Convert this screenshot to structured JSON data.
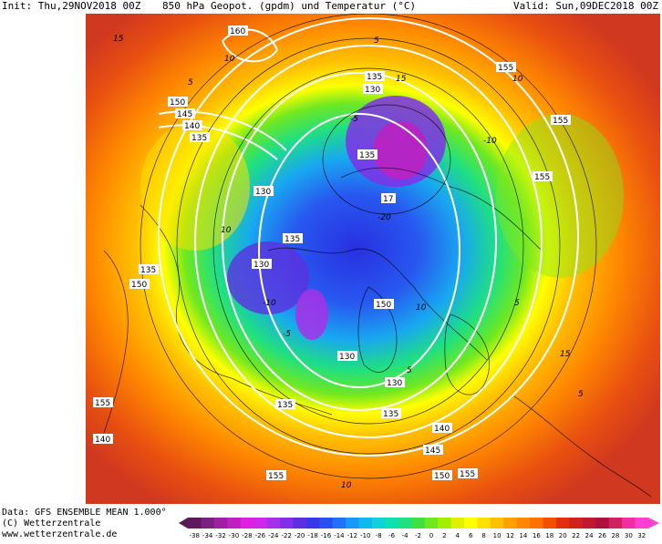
{
  "header": {
    "init": "Init: Thu,29NOV2018 00Z",
    "title": "850 hPa Geopot. (gpdm) und Temperatur (°C)",
    "valid": "Valid: Sun,09DEC2018 00Z"
  },
  "footer": {
    "data": "Data: GFS ENSEMBLE MEAN 1.000°",
    "copyright": "(C) Wetterzentrale",
    "url": "www.wetterzentrale.de"
  },
  "geopotential_labels": [
    "160",
    "155",
    "155",
    "155",
    "150",
    "145",
    "140",
    "135",
    "135",
    "130",
    "135",
    "130",
    "17",
    "135",
    "130",
    "135",
    "150",
    "130",
    "135",
    "130",
    "135",
    "140",
    "145",
    "150",
    "155",
    "155",
    "140",
    "155",
    "150"
  ],
  "temperature_labels": [
    "15",
    "10",
    "5",
    "15",
    "10",
    "5",
    "-5",
    "-10",
    "-20",
    "-5",
    "5",
    "10",
    "-10",
    "10",
    "5",
    "15",
    "10",
    "5"
  ],
  "colorbar": {
    "ticks": [
      "-38",
      "-34",
      "-32",
      "-30",
      "-28",
      "-26",
      "-24",
      "-22",
      "-20",
      "-18",
      "-16",
      "-14",
      "-12",
      "-10",
      "-8",
      "-6",
      "-4",
      "-2",
      "0",
      "2",
      "4",
      "6",
      "8",
      "10",
      "12",
      "14",
      "16",
      "18",
      "20",
      "22",
      "24",
      "26",
      "28",
      "30",
      "32"
    ],
    "colors": [
      "#5a1a5a",
      "#7a2080",
      "#a020a0",
      "#c020c0",
      "#e020e0",
      "#d028e8",
      "#a830e8",
      "#8030e8",
      "#5c30e0",
      "#3838e8",
      "#2850f0",
      "#2070f8",
      "#1898f8",
      "#10b8f0",
      "#10d0d8",
      "#10e0b0",
      "#20e080",
      "#40e040",
      "#70e820",
      "#a0f000",
      "#e0f000",
      "#ffff00",
      "#ffe000",
      "#ffc000",
      "#ffa000",
      "#ff8800",
      "#ff7000",
      "#f05000",
      "#e03010",
      "#d02020",
      "#c01830",
      "#b01040",
      "#d02060",
      "#f030a0",
      "#ff40d0"
    ]
  }
}
